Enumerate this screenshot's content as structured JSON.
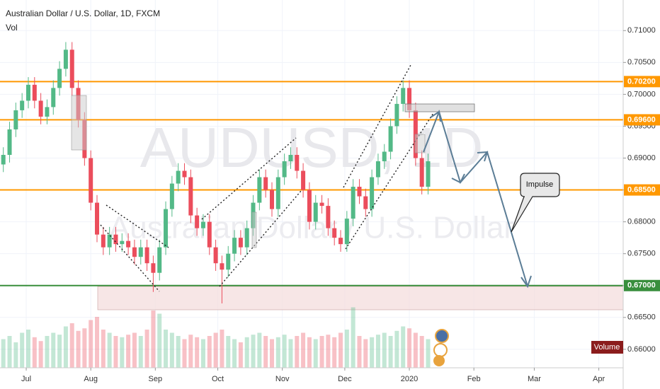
{
  "chart_data": {
    "type": "candlestick",
    "title": "Australian Dollar / U.S. Dollar, 1D, FXCM",
    "subtitle": "Vol",
    "watermark": "AUDUSD, 1D",
    "watermark_sub": "Australian Dollar / U.S. Dollar",
    "volume_label": "Volume",
    "annotation": "Impulse",
    "up_color": "#53b987",
    "down_color": "#eb4d5c",
    "x": [
      -11,
      -8,
      -5,
      -2,
      1,
      4,
      7,
      10,
      13,
      16,
      19,
      22,
      25,
      28,
      31,
      34,
      37,
      40,
      43,
      46,
      49,
      52,
      55,
      58,
      61,
      64,
      67,
      70,
      73,
      76,
      79,
      82,
      85,
      88,
      91,
      94,
      97,
      100,
      103,
      106,
      109,
      112,
      115,
      118,
      121,
      124,
      127,
      130,
      133,
      136,
      139,
      142,
      145,
      148,
      151,
      154,
      157,
      160,
      163,
      166,
      169,
      172,
      175,
      178,
      181,
      184,
      187,
      190,
      193
    ],
    "open": [
      0.689,
      0.6905,
      0.6945,
      0.6975,
      0.699,
      0.7015,
      0.699,
      0.6965,
      0.698,
      0.701,
      0.704,
      0.707,
      0.701,
      0.696,
      0.69,
      0.683,
      0.678,
      0.676,
      0.678,
      0.6765,
      0.677,
      0.676,
      0.6745,
      0.676,
      0.6735,
      0.672,
      0.676,
      0.682,
      0.686,
      0.688,
      0.687,
      0.681,
      0.679,
      0.68,
      0.676,
      0.6735,
      0.6725,
      0.675,
      0.6775,
      0.676,
      0.679,
      0.683,
      0.687,
      0.685,
      0.682,
      0.687,
      0.6895,
      0.6905,
      0.688,
      0.685,
      0.68,
      0.683,
      0.6825,
      0.679,
      0.6775,
      0.6765,
      0.6805,
      0.6855,
      0.684,
      0.682,
      0.687,
      0.6895,
      0.691,
      0.695,
      0.6985,
      0.701,
      0.6975,
      0.69,
      0.6855
    ],
    "high": [
      0.6917,
      0.6957,
      0.6987,
      0.7002,
      0.7027,
      0.7027,
      0.7002,
      0.6992,
      0.7022,
      0.7052,
      0.7082,
      0.7082,
      0.7022,
      0.6972,
      0.6912,
      0.6842,
      0.6792,
      0.6792,
      0.6792,
      0.6782,
      0.6782,
      0.6772,
      0.6772,
      0.6772,
      0.6747,
      0.6772,
      0.6832,
      0.6872,
      0.6892,
      0.6892,
      0.6882,
      0.6822,
      0.6812,
      0.6812,
      0.6772,
      0.6747,
      0.6762,
      0.6787,
      0.6787,
      0.6802,
      0.6842,
      0.6882,
      0.6882,
      0.6862,
      0.6882,
      0.6907,
      0.6917,
      0.6917,
      0.6892,
      0.6862,
      0.6842,
      0.6842,
      0.6837,
      0.6802,
      0.6787,
      0.6817,
      0.6867,
      0.6867,
      0.6852,
      0.6882,
      0.6907,
      0.6922,
      0.6962,
      0.6997,
      0.7022,
      0.7022,
      0.6987,
      0.6912,
      0.6907
    ],
    "low": [
      0.6878,
      0.6893,
      0.6933,
      0.6963,
      0.6978,
      0.6978,
      0.6953,
      0.6953,
      0.6968,
      0.6998,
      0.7028,
      0.6998,
      0.6948,
      0.6888,
      0.6818,
      0.6768,
      0.6748,
      0.6748,
      0.6753,
      0.6753,
      0.6748,
      0.6733,
      0.6733,
      0.6723,
      0.669,
      0.6708,
      0.6748,
      0.6808,
      0.6848,
      0.6858,
      0.6798,
      0.6778,
      0.6778,
      0.6748,
      0.6723,
      0.6672,
      0.6713,
      0.6738,
      0.6748,
      0.6748,
      0.6778,
      0.6818,
      0.6838,
      0.6808,
      0.6808,
      0.6858,
      0.6883,
      0.6868,
      0.6838,
      0.6788,
      0.6788,
      0.6813,
      0.6778,
      0.6763,
      0.6753,
      0.6753,
      0.6793,
      0.6828,
      0.6808,
      0.6808,
      0.6858,
      0.6883,
      0.6898,
      0.6938,
      0.6973,
      0.6963,
      0.6888,
      0.6843,
      0.6843
    ],
    "close": [
      0.6905,
      0.6945,
      0.6975,
      0.699,
      0.7015,
      0.699,
      0.6965,
      0.698,
      0.701,
      0.704,
      0.707,
      0.701,
      0.696,
      0.69,
      0.683,
      0.678,
      0.676,
      0.678,
      0.6765,
      0.677,
      0.676,
      0.6745,
      0.676,
      0.6735,
      0.672,
      0.676,
      0.682,
      0.686,
      0.688,
      0.687,
      0.681,
      0.679,
      0.68,
      0.676,
      0.6735,
      0.6725,
      0.675,
      0.6775,
      0.676,
      0.679,
      0.683,
      0.687,
      0.685,
      0.682,
      0.687,
      0.6895,
      0.6905,
      0.688,
      0.685,
      0.68,
      0.683,
      0.6825,
      0.679,
      0.6775,
      0.6765,
      0.6805,
      0.6855,
      0.684,
      0.682,
      0.687,
      0.6895,
      0.691,
      0.695,
      0.6985,
      0.701,
      0.6975,
      0.69,
      0.6855,
      0.6895
    ],
    "volume": [
      45,
      50,
      40,
      55,
      60,
      48,
      42,
      50,
      55,
      52,
      65,
      70,
      58,
      62,
      75,
      80,
      60,
      55,
      50,
      48,
      52,
      55,
      50,
      60,
      90,
      85,
      60,
      55,
      50,
      45,
      52,
      48,
      45,
      50,
      55,
      60,
      50,
      45,
      40,
      48,
      52,
      55,
      50,
      45,
      48,
      52,
      45,
      50,
      55,
      48,
      45,
      50,
      52,
      48,
      55,
      60,
      95,
      50,
      45,
      48,
      52,
      55,
      50,
      58,
      65,
      62,
      55,
      50,
      45
    ],
    "xlim": [
      -12.6,
      286.7
    ],
    "xticks": [
      {
        "value": 0,
        "label": "Jul"
      },
      {
        "value": 31,
        "label": "Aug"
      },
      {
        "value": 62,
        "label": "Sep"
      },
      {
        "value": 92,
        "label": "Oct"
      },
      {
        "value": 123,
        "label": "Nov"
      },
      {
        "value": 153,
        "label": "Dec"
      },
      {
        "value": 184,
        "label": "2020"
      },
      {
        "value": 215,
        "label": "Feb"
      },
      {
        "value": 244,
        "label": "Mar"
      },
      {
        "value": 275,
        "label": "Apr"
      }
    ],
    "ylim": [
      0.6571,
      0.7148
    ],
    "yticks": [
      {
        "value": 0.66,
        "label": "0.66000"
      },
      {
        "value": 0.665,
        "label": "0.66500"
      },
      {
        "value": 0.67,
        "label": "0.67000"
      },
      {
        "value": 0.675,
        "label": "0.67500"
      },
      {
        "value": 0.68,
        "label": "0.68000"
      },
      {
        "value": 0.685,
        "label": "0.68500"
      },
      {
        "value": 0.69,
        "label": "0.69000"
      },
      {
        "value": 0.695,
        "label": "0.69500"
      },
      {
        "value": 0.7,
        "label": "0.70000"
      },
      {
        "value": 0.705,
        "label": "0.70500"
      },
      {
        "value": 0.71,
        "label": "0.71000"
      }
    ],
    "grid": true,
    "levels": [
      {
        "value": 0.702,
        "label": "0.70200",
        "color": "#ff9800"
      },
      {
        "value": 0.696,
        "label": "0.69600",
        "color": "#ff9800"
      },
      {
        "value": 0.685,
        "label": "0.68500",
        "color": "#ff9800"
      },
      {
        "value": 0.67,
        "label": "0.67000",
        "color": "#388e3c"
      }
    ]
  }
}
